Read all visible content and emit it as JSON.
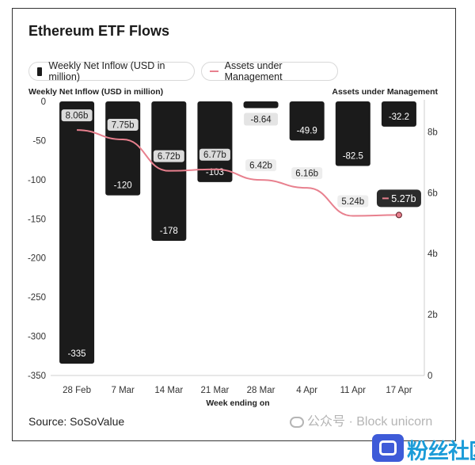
{
  "title": "Ethereum ETF Flows",
  "legend": {
    "bar_label": "Weekly Net Inflow (USD in million)",
    "line_label": "Assets under Management"
  },
  "source": "Source: SoSoValue",
  "watermark": "公众号 · Block unicorn",
  "brand": "粉丝社区",
  "colors": {
    "bar": "#1b1b1b",
    "line": "#e8808e",
    "callout": "#2b2b2b"
  },
  "chart_data": {
    "type": "bar",
    "xlabel": "Week ending on",
    "ylabel": "Weekly Net Inflow (USD in million)",
    "y2label": "Assets under Management",
    "categories": [
      "28 Feb",
      "7 Mar",
      "14 Mar",
      "21 Mar",
      "28 Mar",
      "4 Apr",
      "11 Apr",
      "17 Apr"
    ],
    "ylim": [
      -350,
      0
    ],
    "yticks": [
      "0",
      "-50",
      "-100",
      "-150",
      "-200",
      "-250",
      "-300",
      "-350"
    ],
    "y2lim": [
      0,
      9
    ],
    "y2ticks": [
      "0",
      "2b",
      "4b",
      "6b",
      "8b"
    ],
    "grid": false,
    "series": [
      {
        "name": "Weekly Net Inflow (USD in million)",
        "type": "bar",
        "values": [
          -335,
          -120,
          -178,
          -103,
          -8.64,
          -49.9,
          -82.5,
          -32.2
        ],
        "labels": [
          "-335",
          "-120",
          "-178",
          "-103",
          "-8.64",
          "-49.9",
          "-82.5",
          "-32.2"
        ]
      },
      {
        "name": "Assets under Management",
        "type": "line",
        "axis": "right",
        "values": [
          8.06,
          7.75,
          6.72,
          6.77,
          6.42,
          6.16,
          5.24,
          5.27
        ],
        "labels": [
          "8.06b",
          "7.75b",
          "6.72b",
          "6.77b",
          "6.42b",
          "6.16b",
          "5.24b",
          "5.27b"
        ]
      }
    ]
  }
}
